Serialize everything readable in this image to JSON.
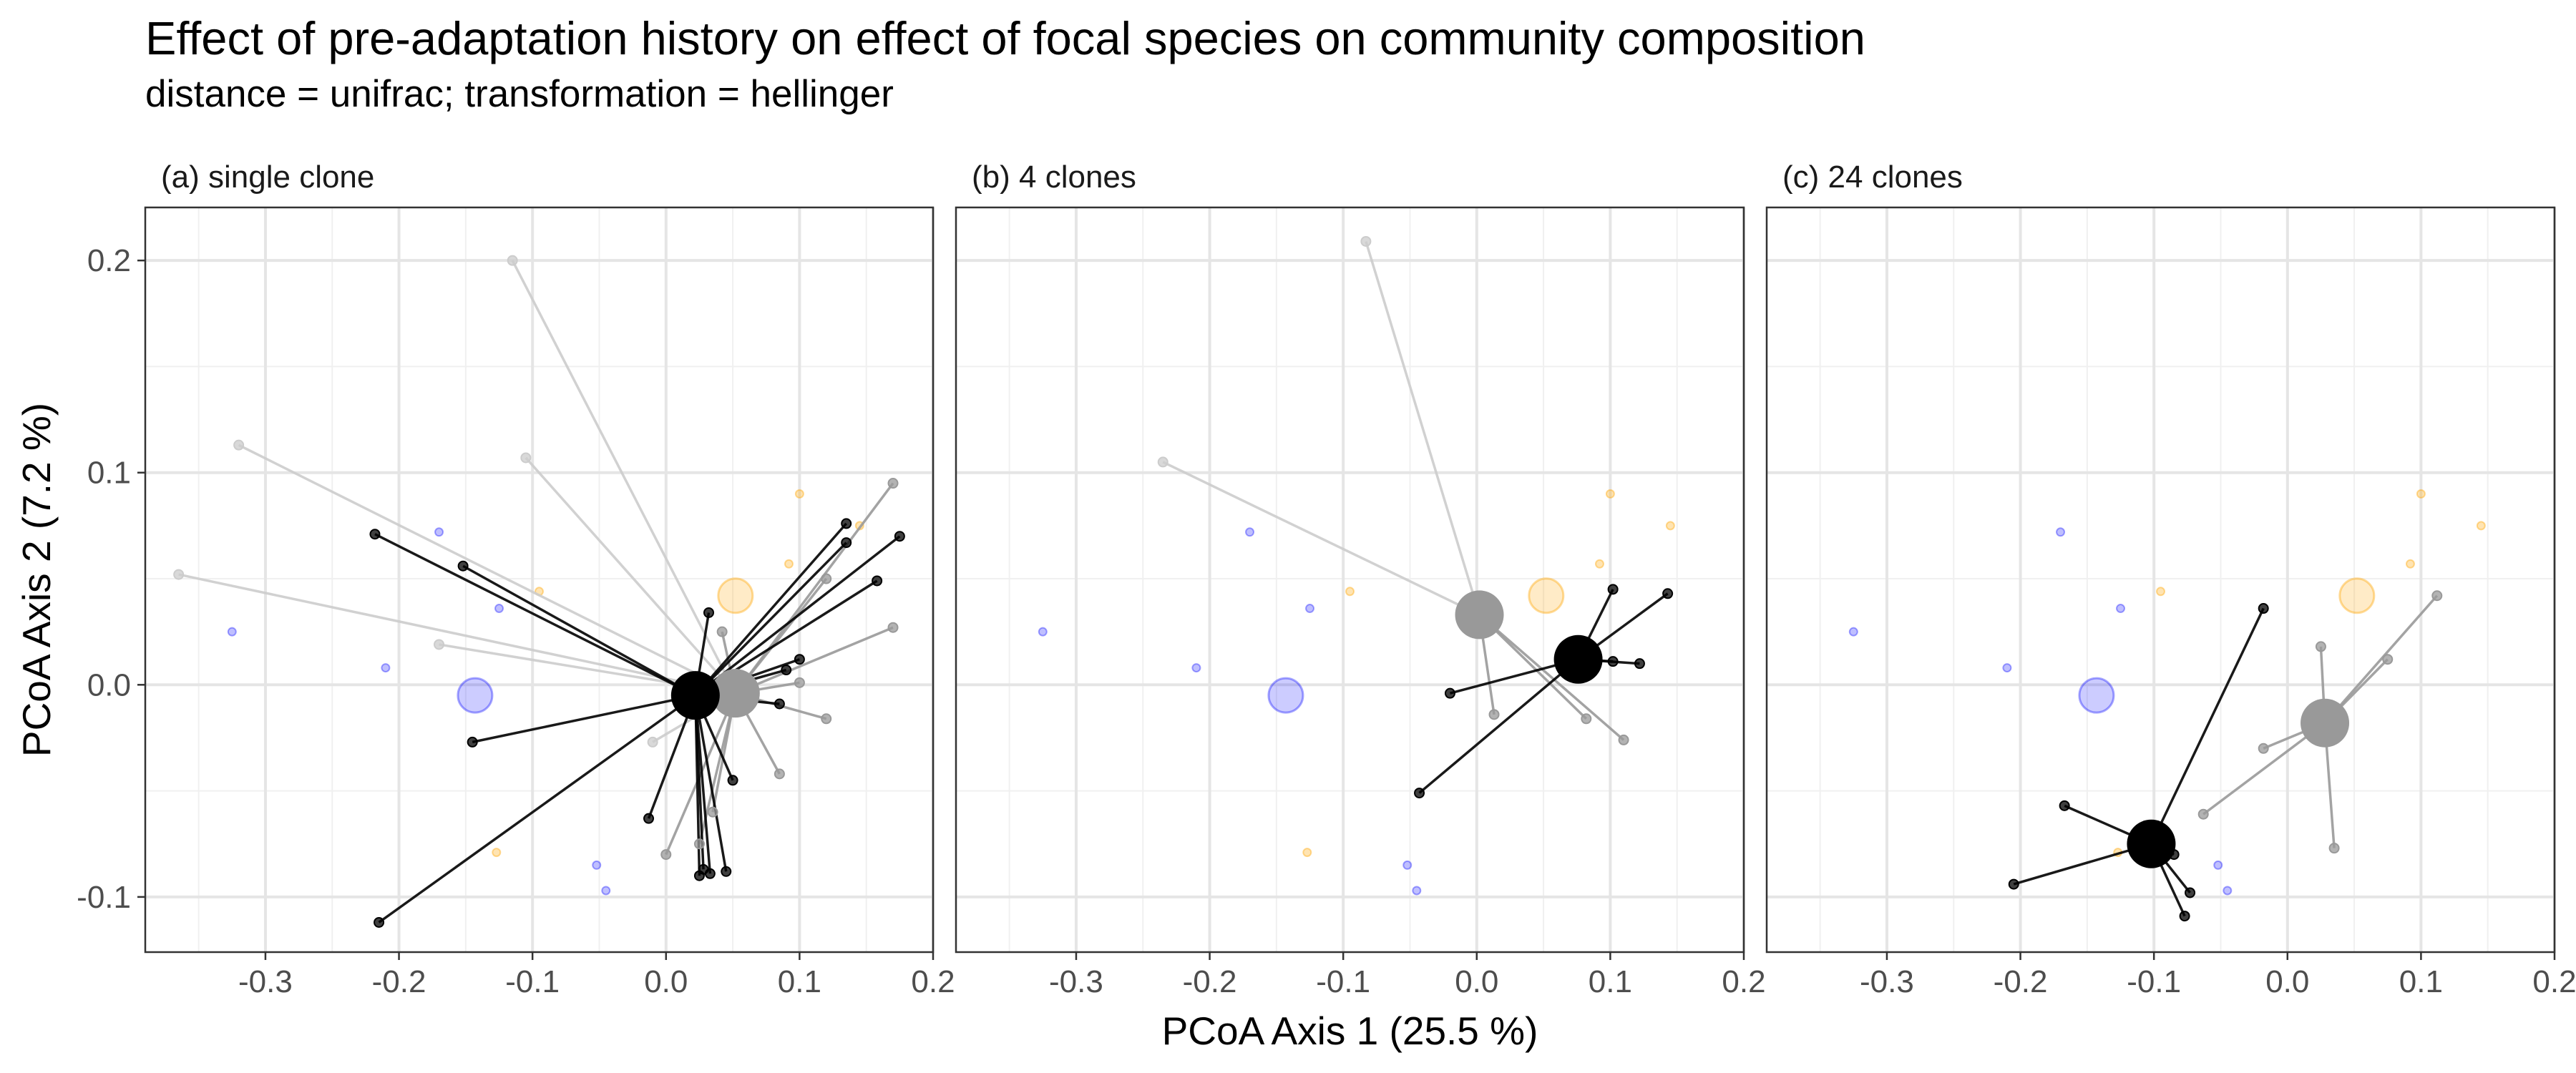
{
  "title": "Effect of pre-adaptation history on effect of focal species on community composition",
  "subtitle": "distance = unifrac; transformation = hellinger",
  "chart_data": {
    "type": "scatter",
    "xlabel": "PCoA Axis 1 (25.5 %)",
    "ylabel": "PCoA Axis 2 (7.2 %)",
    "xlim": [
      -0.39,
      0.2
    ],
    "ylim": [
      -0.126,
      0.225
    ],
    "x_ticks": [
      -0.3,
      -0.2,
      -0.1,
      0.0,
      0.1,
      0.2
    ],
    "x_tick_labels": [
      "-0.3",
      "-0.2",
      "-0.1",
      "0.0",
      "0.1",
      "0.2"
    ],
    "y_ticks": [
      -0.1,
      0.0,
      0.1,
      0.2
    ],
    "y_tick_labels": [
      "-0.1",
      "0.0",
      "0.1",
      "0.2"
    ],
    "grid": true,
    "colors": {
      "blue": "#0000ff",
      "orange": "#ffa500",
      "gray": "#999999",
      "black": "#000000",
      "lightgray": "#cccccc"
    },
    "background": {
      "blue_points": [
        [
          -0.325,
          0.025
        ],
        [
          -0.21,
          0.008
        ],
        [
          -0.17,
          0.072
        ],
        [
          -0.125,
          0.036
        ],
        [
          -0.052,
          -0.085
        ],
        [
          -0.045,
          -0.097
        ]
      ],
      "orange_points": [
        [
          -0.095,
          0.044
        ],
        [
          -0.127,
          -0.079
        ],
        [
          0.1,
          0.09
        ],
        [
          0.092,
          0.057
        ],
        [
          0.145,
          0.075
        ]
      ],
      "blue_centroid": [
        -0.143,
        -0.005
      ],
      "orange_centroid": [
        0.052,
        0.042
      ]
    },
    "panels": [
      {
        "label": "(a) single clone",
        "groups": [
          {
            "color": "lightgray",
            "centroid": [
              0.052,
              -0.004
            ],
            "points": [
              [
                -0.365,
                0.052
              ],
              [
                -0.32,
                0.113
              ],
              [
                -0.115,
                0.2
              ],
              [
                -0.105,
                0.107
              ],
              [
                -0.17,
                0.019
              ],
              [
                -0.01,
                -0.027
              ]
            ]
          },
          {
            "color": "gray",
            "centroid": [
              0.052,
              -0.004
            ],
            "points": [
              [
                0.17,
                0.095
              ],
              [
                0.17,
                0.027
              ],
              [
                0.12,
                0.05
              ],
              [
                0.1,
                0.001
              ],
              [
                0.12,
                -0.016
              ],
              [
                0.085,
                -0.042
              ],
              [
                0.042,
                0.025
              ],
              [
                0.035,
                -0.06
              ],
              [
                0.025,
                -0.075
              ],
              [
                0.0,
                -0.08
              ],
              [
                0.045,
                -0.01
              ]
            ]
          },
          {
            "color": "black",
            "centroid": [
              0.022,
              -0.005
            ],
            "points": [
              [
                -0.218,
                0.071
              ],
              [
                -0.152,
                0.056
              ],
              [
                -0.145,
                -0.027
              ],
              [
                -0.215,
                -0.112
              ],
              [
                -0.013,
                -0.063
              ],
              [
                0.032,
                0.034
              ],
              [
                0.135,
                0.076
              ],
              [
                0.135,
                0.067
              ],
              [
                0.175,
                0.07
              ],
              [
                0.158,
                0.049
              ],
              [
                0.1,
                0.012
              ],
              [
                0.09,
                0.007
              ],
              [
                0.085,
                -0.009
              ],
              [
                0.05,
                -0.045
              ],
              [
                0.045,
                -0.088
              ],
              [
                0.033,
                -0.089
              ],
              [
                0.028,
                -0.087
              ],
              [
                0.025,
                -0.09
              ]
            ]
          }
        ]
      },
      {
        "label": "(b) 4 clones",
        "groups": [
          {
            "color": "lightgray",
            "centroid": [
              0.002,
              0.033
            ],
            "points": [
              [
                -0.235,
                0.105
              ],
              [
                -0.083,
                0.209
              ]
            ]
          },
          {
            "color": "gray",
            "centroid": [
              0.002,
              0.033
            ],
            "points": [
              [
                0.013,
                -0.014
              ],
              [
                0.082,
                -0.016
              ],
              [
                0.11,
                -0.026
              ]
            ]
          },
          {
            "color": "black",
            "centroid": [
              0.076,
              0.012
            ],
            "points": [
              [
                0.102,
                0.045
              ],
              [
                0.143,
                0.043
              ],
              [
                0.122,
                0.01
              ],
              [
                0.102,
                0.011
              ],
              [
                -0.02,
                -0.004
              ],
              [
                -0.043,
                -0.051
              ]
            ]
          }
        ]
      },
      {
        "label": "(c) 24 clones",
        "groups": [
          {
            "color": "gray",
            "centroid": [
              0.028,
              -0.018
            ],
            "points": [
              [
                0.112,
                0.042
              ],
              [
                0.075,
                0.012
              ],
              [
                0.025,
                0.018
              ],
              [
                -0.018,
                -0.03
              ],
              [
                0.035,
                -0.077
              ],
              [
                -0.063,
                -0.061
              ]
            ]
          },
          {
            "color": "black",
            "centroid": [
              -0.102,
              -0.075
            ],
            "points": [
              [
                -0.018,
                0.036
              ],
              [
                -0.167,
                -0.057
              ],
              [
                -0.205,
                -0.094
              ],
              [
                -0.085,
                -0.08
              ],
              [
                -0.073,
                -0.098
              ],
              [
                -0.077,
                -0.109
              ]
            ]
          }
        ]
      }
    ]
  }
}
